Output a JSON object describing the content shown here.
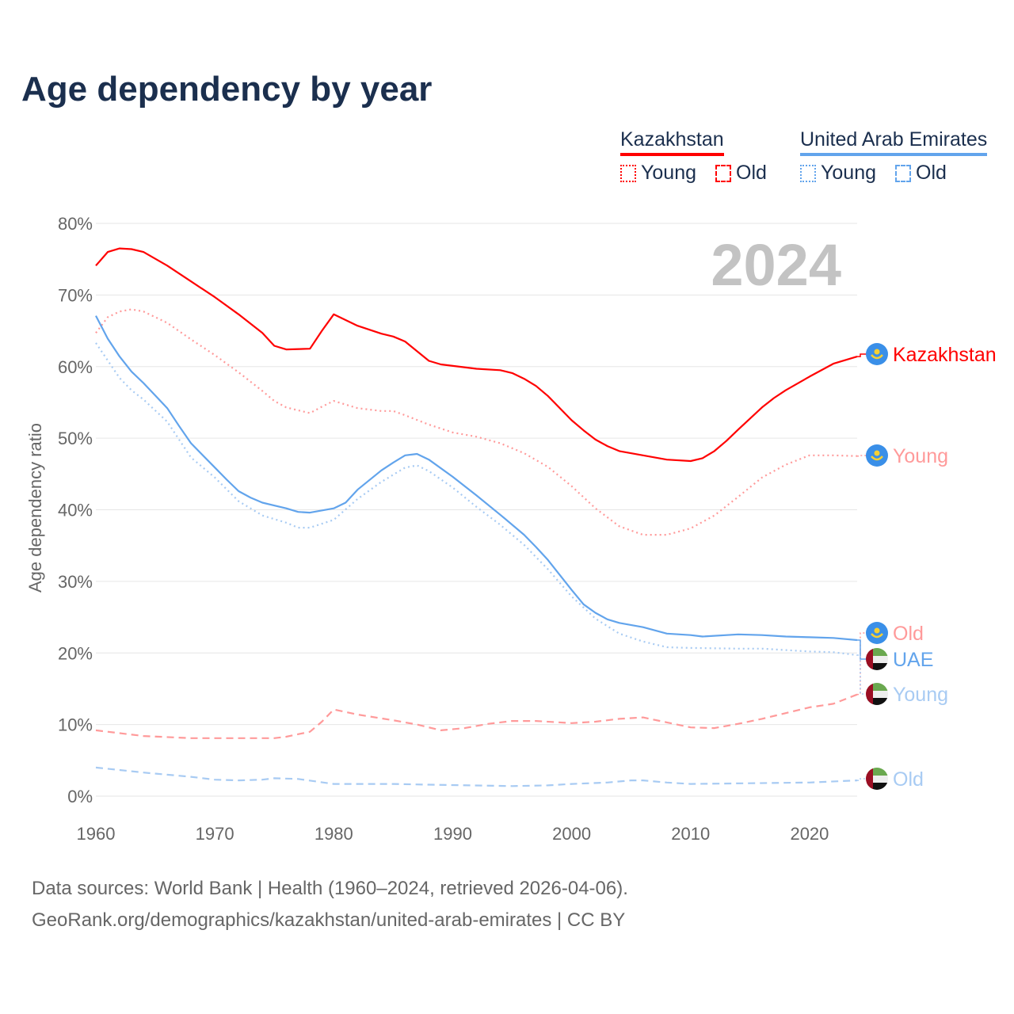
{
  "chart_data": {
    "type": "line",
    "title": "Age dependency by year",
    "xlabel": "",
    "ylabel": "Age dependency ratio",
    "xlim": [
      1960,
      2024
    ],
    "ylim": [
      0,
      80
    ],
    "x_ticks": [
      1960,
      1970,
      1980,
      1990,
      2000,
      2010,
      2020
    ],
    "y_ticks": [
      0,
      10,
      20,
      30,
      40,
      50,
      60,
      70,
      80
    ],
    "y_tick_labels": [
      "0%",
      "10%",
      "20%",
      "30%",
      "40%",
      "50%",
      "60%",
      "70%",
      "80%"
    ],
    "grid": true,
    "year_watermark": "2024",
    "legend": {
      "placement": "top-right",
      "groups": [
        {
          "country": "Kazakhstan",
          "color": "#ff0000",
          "items": [
            "Young",
            "Old"
          ]
        },
        {
          "country": "United Arab Emirates",
          "color": "#62a4ec",
          "items": [
            "Young",
            "Old"
          ]
        }
      ]
    },
    "series": [
      {
        "name": "Kazakhstan",
        "end_label": "Kazakhstan",
        "flag": "kazakhstan",
        "color": "#ff0000",
        "style": "solid",
        "x": [
          1960,
          1961,
          1962,
          1963,
          1964,
          1966,
          1968,
          1970,
          1972,
          1974,
          1975,
          1976,
          1978,
          1979,
          1980,
          1982,
          1984,
          1985,
          1986,
          1988,
          1989,
          1992,
          1994,
          1995,
          1996,
          1997,
          1998,
          2000,
          2001,
          2002,
          2003,
          2004,
          2006,
          2008,
          2010,
          2011,
          2012,
          2013,
          2014,
          2016,
          2017,
          2018,
          2020,
          2022,
          2024
        ],
        "y": [
          74.1,
          76,
          76.5,
          76.4,
          76,
          74.1,
          71.9,
          69.7,
          67.3,
          64.7,
          62.9,
          62.4,
          62.5,
          65,
          67.3,
          65.7,
          64.6,
          64.2,
          63.5,
          60.8,
          60.3,
          59.7,
          59.5,
          59.1,
          58.3,
          57.3,
          55.9,
          52.5,
          51.1,
          49.8,
          48.9,
          48.2,
          47.6,
          47.0,
          46.8,
          47.2,
          48.2,
          49.6,
          51.2,
          54.3,
          55.6,
          56.7,
          58.6,
          60.4,
          61.4
        ]
      },
      {
        "name": "Kazakhstan Young",
        "end_label": "Young",
        "flag": "kazakhstan",
        "color": "#ff9a9a",
        "style": "dotted",
        "x": [
          1960,
          1961,
          1962,
          1963,
          1964,
          1966,
          1968,
          1970,
          1972,
          1974,
          1975,
          1976,
          1978,
          1979,
          1980,
          1982,
          1984,
          1985,
          1986,
          1988,
          1990,
          1992,
          1994,
          1996,
          1998,
          2000,
          2002,
          2004,
          2006,
          2008,
          2010,
          2012,
          2014,
          2016,
          2018,
          2020,
          2022,
          2024
        ],
        "y": [
          64.7,
          66.9,
          67.7,
          68,
          67.7,
          66.1,
          63.8,
          61.6,
          59.2,
          56.6,
          55.2,
          54.3,
          53.5,
          54.4,
          55.2,
          54.2,
          53.8,
          53.8,
          53.2,
          51.9,
          50.8,
          50.2,
          49.3,
          47.9,
          46,
          43.3,
          40.2,
          37.7,
          36.5,
          36.5,
          37.4,
          39.2,
          41.8,
          44.5,
          46.3,
          47.6,
          47.6,
          47.5
        ]
      },
      {
        "name": "Kazakhstan Old",
        "end_label": "Old",
        "flag": "kazakhstan",
        "color": "#ff9a9a",
        "style": "dashed",
        "x": [
          1960,
          1964,
          1968,
          1972,
          1975,
          1976,
          1978,
          1979,
          1980,
          1982,
          1985,
          1987,
          1989,
          1991,
          1993,
          1995,
          1997,
          2000,
          2002,
          2004,
          2006,
          2008,
          2010,
          2012,
          2014,
          2016,
          2018,
          2020,
          2022,
          2024
        ],
        "y": [
          9.2,
          8.4,
          8.1,
          8.1,
          8.1,
          8.3,
          9,
          10.4,
          12.1,
          11.4,
          10.6,
          10,
          9.2,
          9.5,
          10.1,
          10.5,
          10.5,
          10.2,
          10.4,
          10.8,
          11,
          10.3,
          9.6,
          9.5,
          10.1,
          10.8,
          11.6,
          12.4,
          12.9,
          14.2
        ]
      },
      {
        "name": "UAE",
        "end_label": "UAE",
        "flag": "uae",
        "color": "#62a4ec",
        "style": "solid",
        "x": [
          1960,
          1961,
          1962,
          1963,
          1964,
          1966,
          1967,
          1968,
          1970,
          1971,
          1972,
          1973,
          1974,
          1976,
          1977,
          1978,
          1980,
          1981,
          1982,
          1984,
          1985,
          1986,
          1987,
          1988,
          1990,
          1992,
          1994,
          1996,
          1997,
          1998,
          2000,
          2001,
          2002,
          2003,
          2004,
          2006,
          2008,
          2010,
          2011,
          2014,
          2016,
          2018,
          2020,
          2022,
          2024
        ],
        "y": [
          67.1,
          63.9,
          61.4,
          59.3,
          57.7,
          54.2,
          51.7,
          49.3,
          45.9,
          44.2,
          42.6,
          41.7,
          41,
          40.2,
          39.7,
          39.6,
          40.2,
          41,
          42.8,
          45.5,
          46.6,
          47.6,
          47.8,
          47,
          44.6,
          42,
          39.3,
          36.5,
          34.8,
          33,
          28.8,
          26.8,
          25.6,
          24.7,
          24.2,
          23.6,
          22.7,
          22.5,
          22.3,
          22.6,
          22.5,
          22.3,
          22.2,
          22.1,
          21.8
        ]
      },
      {
        "name": "UAE Young",
        "end_label": "Young",
        "flag": "uae",
        "color": "#a8cbf3",
        "style": "dotted",
        "x": [
          1960,
          1962,
          1963,
          1964,
          1966,
          1968,
          1970,
          1972,
          1974,
          1976,
          1977,
          1978,
          1980,
          1982,
          1984,
          1986,
          1987,
          1988,
          1990,
          1992,
          1994,
          1996,
          1998,
          2000,
          2002,
          2004,
          2006,
          2008,
          2010,
          2014,
          2016,
          2020,
          2022,
          2024
        ],
        "y": [
          63.3,
          58.4,
          56.7,
          55.4,
          52.3,
          47.3,
          44.5,
          41.2,
          39.2,
          38.2,
          37.5,
          37.5,
          38.6,
          41.5,
          43.9,
          45.9,
          46.2,
          45.4,
          43.1,
          40.4,
          37.9,
          35.1,
          31.7,
          27.9,
          24.8,
          22.7,
          21.6,
          20.8,
          20.7,
          20.6,
          20.6,
          20.2,
          20.1,
          19.7
        ]
      },
      {
        "name": "UAE Old",
        "end_label": "Old",
        "flag": "uae",
        "color": "#a8cbf3",
        "style": "dashed",
        "x": [
          1960,
          1964,
          1968,
          1970,
          1972,
          1974,
          1975,
          1977,
          1980,
          1985,
          1988,
          1995,
          1998,
          2000,
          2003,
          2005,
          2006,
          2008,
          2010,
          2015,
          2020,
          2024
        ],
        "y": [
          4,
          3.3,
          2.7,
          2.3,
          2.2,
          2.3,
          2.5,
          2.4,
          1.7,
          1.7,
          1.6,
          1.4,
          1.5,
          1.7,
          1.9,
          2.2,
          2.2,
          1.9,
          1.7,
          1.8,
          1.9,
          2.2
        ]
      }
    ]
  },
  "footer": {
    "source": "Data sources: World Bank | Health (1960–2024, retrieved 2026-04-06).",
    "url": "GeoRank.org/demographics/kazakhstan/united-arab-emirates | CC BY"
  }
}
